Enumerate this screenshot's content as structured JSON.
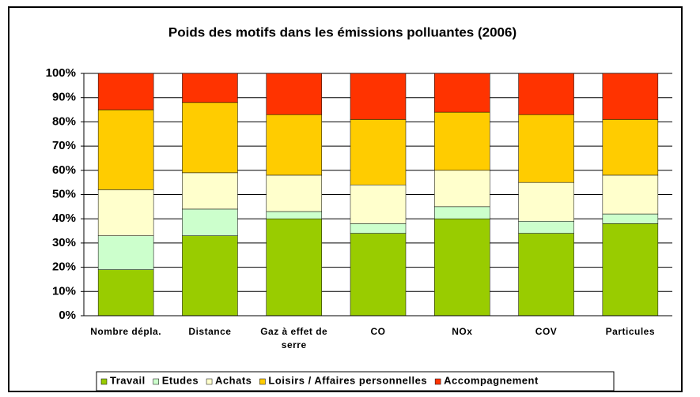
{
  "chart_data": {
    "type": "stacked_bar_100",
    "title": "Poids des motifs dans les émissions polluantes (2006)",
    "categories": [
      "Nombre dépla.",
      "Distance",
      "Gaz à effet de serre",
      "CO",
      "NOx",
      "COV",
      "Particules"
    ],
    "series": [
      {
        "name": "Travail",
        "color": "#99cc00",
        "values": [
          19,
          33,
          40,
          34,
          40,
          34,
          38
        ]
      },
      {
        "name": "Etudes",
        "color": "#ccffcc",
        "values": [
          14,
          11,
          3,
          4,
          5,
          5,
          4
        ]
      },
      {
        "name": "Achats",
        "color": "#ffffcc",
        "values": [
          19,
          15,
          15,
          16,
          15,
          16,
          16
        ]
      },
      {
        "name": "Loisirs / Affaires personnelles",
        "color": "#ffcc00",
        "values": [
          33,
          29,
          25,
          27,
          24,
          28,
          23
        ]
      },
      {
        "name": "Accompagnement",
        "color": "#ff3300",
        "values": [
          15,
          12,
          17,
          19,
          16,
          17,
          19
        ]
      }
    ],
    "ylim": [
      0,
      100
    ],
    "yticks": [
      {
        "value": 0,
        "label": "0%"
      },
      {
        "value": 10,
        "label": "10%"
      },
      {
        "value": 20,
        "label": "20%"
      },
      {
        "value": 30,
        "label": "30%"
      },
      {
        "value": 40,
        "label": "40%"
      },
      {
        "value": 50,
        "label": "50%"
      },
      {
        "value": 60,
        "label": "60%"
      },
      {
        "value": 70,
        "label": "70%"
      },
      {
        "value": 80,
        "label": "80%"
      },
      {
        "value": 90,
        "label": "90%"
      },
      {
        "value": 100,
        "label": "100%"
      }
    ],
    "grid": true
  }
}
